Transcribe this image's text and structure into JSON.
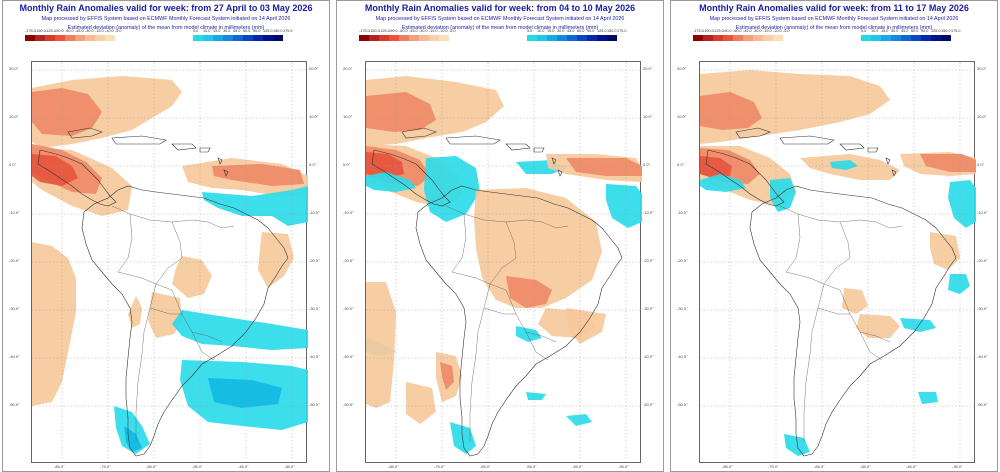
{
  "panels": [
    {
      "title": "Monthly Rain Anomalies valid for week: from 27 April to 03 May 2026"
    },
    {
      "title": "Monthly Rain Anomalies valid for week: from 04 to 10 May 2026"
    },
    {
      "title": "Monthly Rain Anomalies valid for week: from 11 to 17 May 2026"
    }
  ],
  "subtitle": "Map processed by EFFIS System based on ECMWF Monthly Forecast System initiated on 14 April 2026",
  "description": "Estimated deviation (anomaly) of the mean from model climate in millimeters (mm)",
  "colorbar": {
    "neg_ticks": [
      "-175.0",
      "-150.0",
      "-125.0",
      "-90.0",
      "-60.0",
      "-45.0",
      "-30.0",
      "-15.0",
      "-10.0",
      "-5.0"
    ],
    "neg_colors": [
      "#8b0000",
      "#b22222",
      "#d63a2a",
      "#e8553d",
      "#ee7e60",
      "#f2a07e",
      "#f6bb95",
      "#f8cfa8",
      "#fadfbd"
    ],
    "pos_ticks": [
      "5.0",
      "10.0",
      "15.0",
      "30.0",
      "45.0",
      "60.0",
      "90.0",
      "125.0",
      "150.0",
      "175.0"
    ],
    "pos_colors": [
      "#27dbe6",
      "#22c6ec",
      "#1aa8e8",
      "#1589e0",
      "#1066d4",
      "#0a45c2",
      "#0628a8",
      "#031489",
      "#010a66"
    ]
  },
  "lat_labels": [
    "20.0°",
    "10.0°",
    "0.0°",
    "-10.0°",
    "-20.0°",
    "-30.0°",
    "-40.0°",
    "-50.0°"
  ],
  "lon_labels": [
    "-85.0°",
    "-75.0°",
    "-65.0°",
    "-55.0°",
    "-45.0°",
    "-35.0°"
  ],
  "colors": {
    "title": "#1a1aa8",
    "dry": "#f6c99b",
    "drier": "#ee8a66",
    "driest": "#e6553e",
    "wet": "#2cdbe9",
    "wetter": "#14b8e4"
  }
}
